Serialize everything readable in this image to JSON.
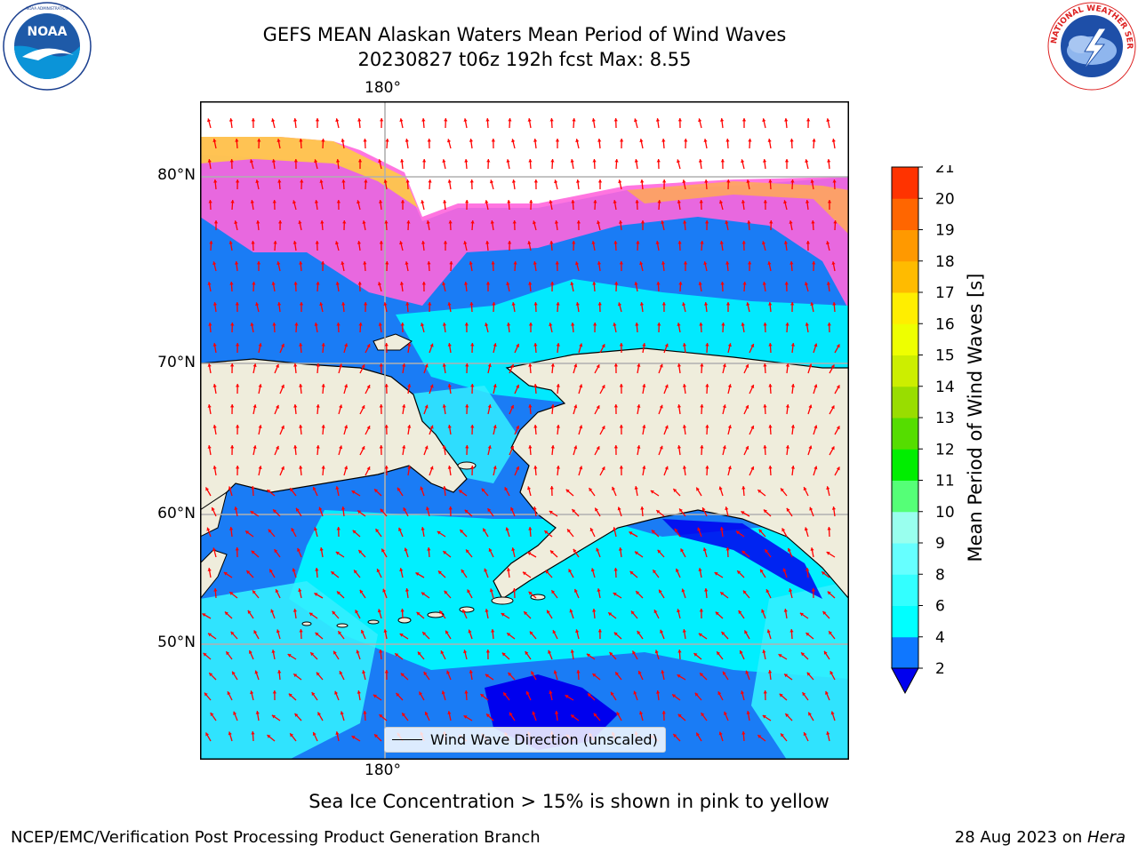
{
  "header": {
    "title_line1": "GEFS MEAN Alaskan Waters Mean Period of Wind Waves",
    "title_line2": "20230827 t06z 192h fcst   Max: 8.55"
  },
  "logos": {
    "left": {
      "name": "noaa-logo",
      "text": "NOAA",
      "ring_text": "NATIONAL OCEANIC AND ATMOSPHERIC ADMINISTRATION · U.S. DEPARTMENT OF COMMERCE"
    },
    "right": {
      "name": "nws-logo",
      "ring_text": "NATIONAL WEATHER SERVICE"
    }
  },
  "map": {
    "lon_label_top": "180°",
    "lon_label_bottom": "180°",
    "lat_labels": [
      "80°N",
      "70°N",
      "60°N",
      "50°N"
    ],
    "land_color": "#efeddc",
    "coast_color": "#000000",
    "grid_color": "#b0b0b0",
    "arrow_color": "#ff0000"
  },
  "legend": {
    "label": "Wind Wave Direction (unscaled)"
  },
  "colorbar": {
    "title": "Mean Period of Wind Waves [s]",
    "tick_labels": [
      "2",
      "4",
      "6",
      "8",
      "9",
      "10",
      "11",
      "12",
      "13",
      "14",
      "15",
      "16",
      "17",
      "18",
      "19",
      "20",
      "21"
    ],
    "colors": [
      "#0f77ff",
      "#00ffff",
      "#33ffff",
      "#66ffff",
      "#99ffee",
      "#55ff77",
      "#00ee00",
      "#55dd00",
      "#99dd00",
      "#ccee00",
      "#eeff00",
      "#ffee00",
      "#ffbb00",
      "#ff9900",
      "#ff6600",
      "#ff3300",
      "#ff0000"
    ],
    "under_color": "#0000ee"
  },
  "notes": {
    "sea_ice": "Sea Ice Concentration > 15% is shown in pink to yellow"
  },
  "footer": {
    "left": "NCEP/EMC/Verification Post Processing Product Generation Branch",
    "right_date": "28 Aug 2023 on ",
    "right_machine": "Hera"
  }
}
